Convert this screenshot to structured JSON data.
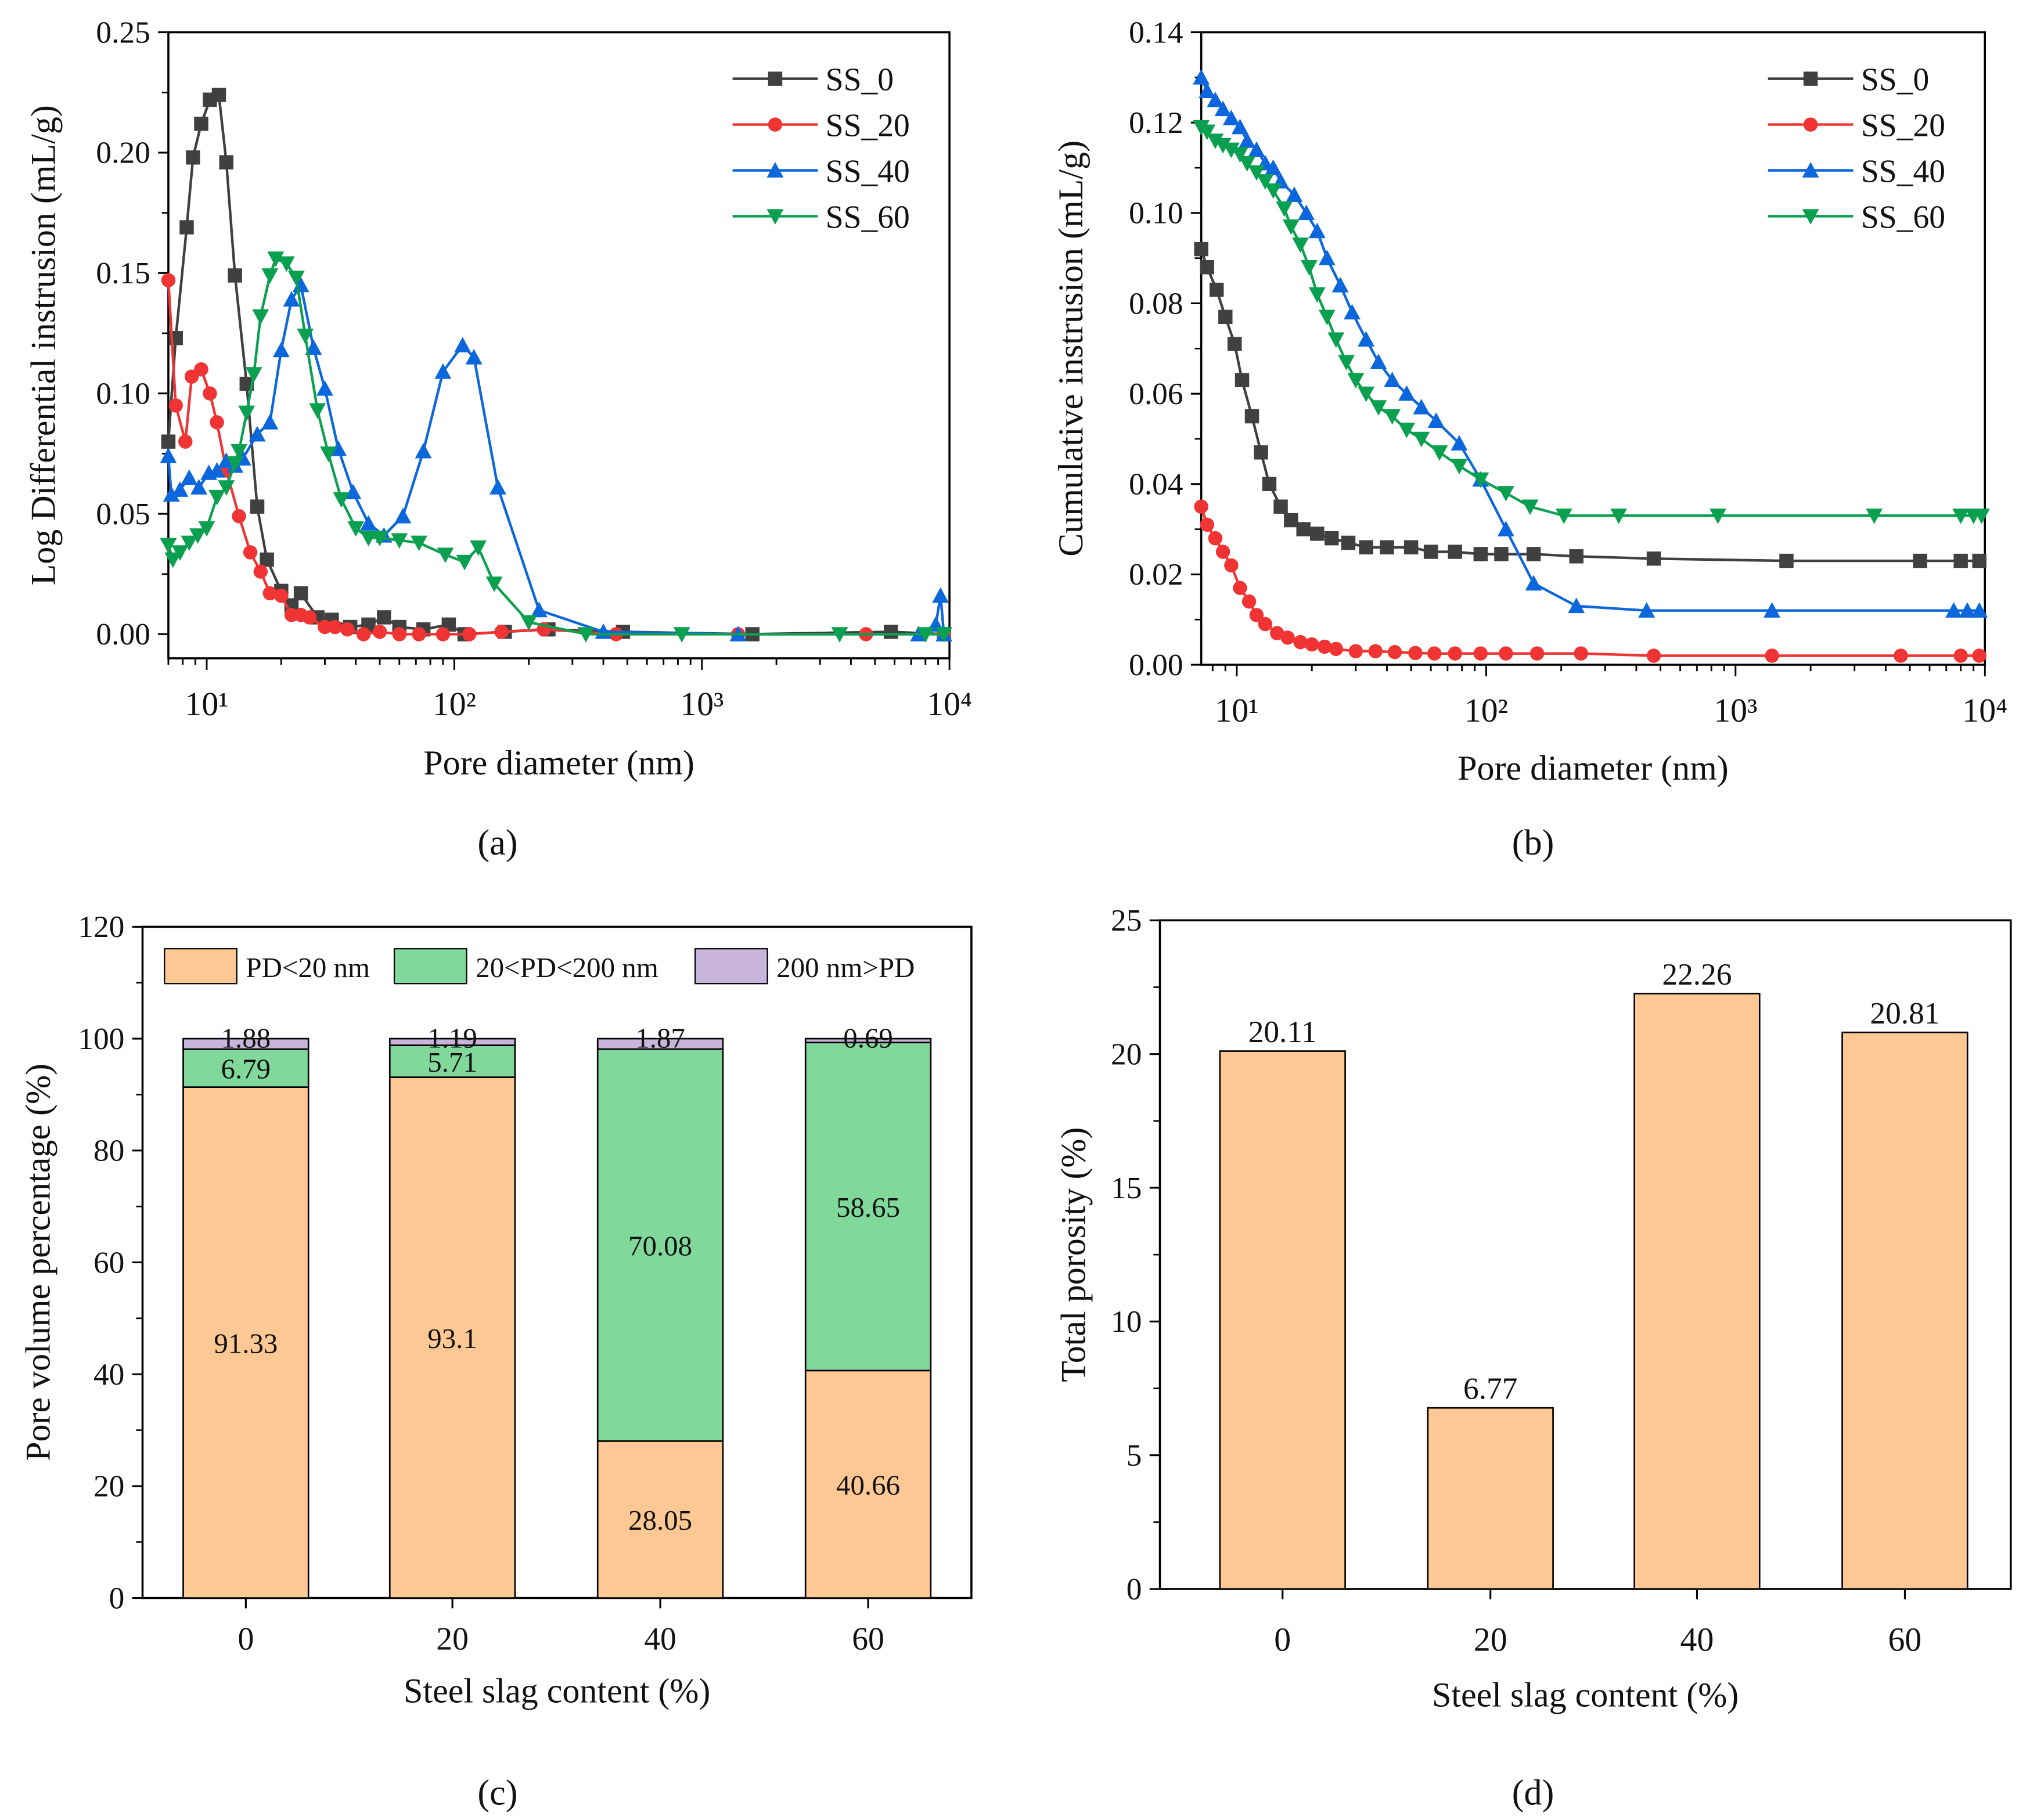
{
  "chart_data": [
    {
      "id": "a",
      "panel_label": "(a)",
      "type": "line",
      "xscale": "log",
      "xlabel": "Pore diameter (nm)",
      "ylabel": "Log Differential instrusion (mL/g)",
      "xlim": [
        7,
        10000
      ],
      "ylim": [
        -0.01,
        0.25
      ],
      "x_ticks": [
        10,
        100,
        1000,
        10000
      ],
      "x_tick_labels": [
        "10¹",
        "10²",
        "10³",
        "10⁴"
      ],
      "y_ticks": [
        0,
        0.05,
        0.1,
        0.15,
        0.2,
        0.25
      ],
      "y_tick_labels": [
        "0.00",
        "0.05",
        "0.10",
        "0.15",
        "0.20",
        "0.25"
      ],
      "legend_position": "top-right",
      "series": [
        {
          "name": "SS_0",
          "color": "#404040",
          "marker": "square",
          "x": [
            7,
            7.5,
            8.3,
            8.8,
            9.5,
            10.3,
            11.2,
            12,
            13,
            14.5,
            16,
            17.5,
            20,
            22,
            24,
            28,
            32,
            38,
            45,
            52,
            60,
            75,
            95,
            110,
            160,
            240,
            480,
            1600,
            5800,
            9500
          ],
          "y": [
            0.08,
            0.123,
            0.169,
            0.198,
            0.212,
            0.222,
            0.224,
            0.196,
            0.149,
            0.104,
            0.053,
            0.031,
            0.018,
            0.012,
            0.017,
            0.007,
            0.006,
            0.003,
            0.004,
            0.007,
            0.003,
            0.002,
            0.004,
            0.0,
            0.001,
            0.002,
            0.001,
            0,
            0.001,
            0
          ]
        },
        {
          "name": "SS_20",
          "color": "#f03434",
          "marker": "circle",
          "x": [
            7,
            7.5,
            8.2,
            8.7,
            9.5,
            10.3,
            11,
            12,
            13.5,
            15,
            16.5,
            18,
            20,
            22,
            24,
            26,
            30,
            33,
            37,
            43,
            50,
            60,
            72,
            90,
            115,
            155,
            230,
            450,
            1400,
            4600,
            9500
          ],
          "y": [
            0.147,
            0.095,
            0.08,
            0.107,
            0.11,
            0.1,
            0.088,
            0.068,
            0.049,
            0.034,
            0.026,
            0.017,
            0.016,
            0.008,
            0.008,
            0.007,
            0.003,
            0.003,
            0.002,
            0,
            0.001,
            0,
            0,
            0,
            0,
            0.001,
            0.002,
            0,
            0,
            0,
            0
          ]
        },
        {
          "name": "SS_40",
          "color": "#0b67db",
          "marker": "triangle-up",
          "x": [
            7,
            7.2,
            7.8,
            8.5,
            9.3,
            10.2,
            11,
            12,
            13,
            14,
            16,
            18,
            20,
            22,
            24,
            27,
            30,
            34,
            39,
            45,
            52,
            62,
            75,
            90,
            108,
            120,
            150,
            220,
            400,
            1400,
            7500,
            8800,
            9200,
            9500
          ],
          "y": [
            0.074,
            0.058,
            0.06,
            0.065,
            0.061,
            0.067,
            0.068,
            0.072,
            0.07,
            0.073,
            0.083,
            0.088,
            0.118,
            0.139,
            0.145,
            0.119,
            0.102,
            0.077,
            0.059,
            0.046,
            0.041,
            0.049,
            0.076,
            0.109,
            0.12,
            0.115,
            0.061,
            0.01,
            0.001,
            0,
            0,
            0.004,
            0.016,
            0
          ]
        },
        {
          "name": "SS_60",
          "color": "#0ba050",
          "marker": "triangle-down",
          "x": [
            7,
            7.3,
            7.8,
            8.5,
            9.2,
            10,
            11,
            12,
            13,
            13.5,
            14.5,
            15.5,
            16.5,
            18,
            19,
            21,
            23,
            25,
            28,
            31,
            35,
            40,
            45,
            50,
            60,
            72,
            92,
            110,
            125,
            145,
            200,
            340,
            830,
            3600,
            8000,
            9500
          ],
          "y": [
            0.037,
            0.031,
            0.034,
            0.038,
            0.041,
            0.044,
            0.057,
            0.061,
            0.071,
            0.076,
            0.092,
            0.108,
            0.132,
            0.149,
            0.156,
            0.154,
            0.148,
            0.124,
            0.093,
            0.075,
            0.056,
            0.044,
            0.04,
            0.04,
            0.039,
            0.038,
            0.033,
            0.03,
            0.036,
            0.021,
            0.005,
            0,
            0,
            0,
            0,
            0
          ]
        }
      ]
    },
    {
      "id": "b",
      "panel_label": "(b)",
      "type": "line",
      "xscale": "log",
      "xlabel": "Pore diameter (nm)",
      "ylabel": "Cumulative instrusion (mL/g)",
      "xlim": [
        7.2,
        10000
      ],
      "ylim": [
        0,
        0.14
      ],
      "x_ticks": [
        10,
        100,
        1000,
        10000
      ],
      "x_tick_labels": [
        "10¹",
        "10²",
        "10³",
        "10⁴"
      ],
      "y_ticks": [
        0,
        0.02,
        0.04,
        0.06,
        0.08,
        0.1,
        0.12,
        0.14
      ],
      "y_tick_labels": [
        "0.00",
        "0.02",
        "0.04",
        "0.06",
        "0.08",
        "0.10",
        "0.12",
        "0.14"
      ],
      "legend_position": "top-right",
      "series": [
        {
          "name": "SS_0",
          "color": "#404040",
          "marker": "square",
          "x": [
            7.2,
            7.6,
            8.3,
            9,
            9.8,
            10.5,
            11.5,
            12.5,
            13.5,
            15,
            16.5,
            18.5,
            21,
            24,
            28,
            33,
            40,
            50,
            60,
            75,
            95,
            115,
            155,
            230,
            470,
            1600,
            5500,
            8000,
            9500
          ],
          "y": [
            0.092,
            0.088,
            0.083,
            0.077,
            0.071,
            0.063,
            0.055,
            0.047,
            0.04,
            0.035,
            0.032,
            0.03,
            0.029,
            0.028,
            0.027,
            0.026,
            0.026,
            0.026,
            0.025,
            0.025,
            0.0245,
            0.0245,
            0.0245,
            0.024,
            0.0235,
            0.023,
            0.023,
            0.023,
            0.023
          ]
        },
        {
          "name": "SS_20",
          "color": "#f03434",
          "marker": "circle",
          "x": [
            7.2,
            7.6,
            8.2,
            8.8,
            9.5,
            10.3,
            11.2,
            12,
            13,
            14.5,
            16,
            18,
            20,
            22.5,
            25,
            30,
            36,
            43,
            52,
            62,
            75,
            95,
            120,
            160,
            240,
            470,
            1400,
            4600,
            8000,
            9500
          ],
          "y": [
            0.035,
            0.031,
            0.028,
            0.025,
            0.022,
            0.017,
            0.014,
            0.011,
            0.009,
            0.007,
            0.006,
            0.005,
            0.0045,
            0.004,
            0.0035,
            0.003,
            0.003,
            0.0028,
            0.0026,
            0.0025,
            0.0025,
            0.0025,
            0.0025,
            0.0025,
            0.0025,
            0.002,
            0.002,
            0.002,
            0.002,
            0.002
          ]
        },
        {
          "name": "SS_40",
          "color": "#0b67db",
          "marker": "triangle-up",
          "x": [
            7.2,
            7.6,
            8.2,
            8.8,
            9.5,
            10.3,
            11,
            12,
            13,
            14,
            15,
            17,
            19,
            21,
            23,
            26,
            29,
            33,
            37,
            42,
            48,
            55,
            63,
            78,
            95,
            120,
            155,
            230,
            440,
            1400,
            7500,
            8500,
            9500
          ],
          "y": [
            0.13,
            0.127,
            0.125,
            0.123,
            0.121,
            0.119,
            0.116,
            0.114,
            0.111,
            0.11,
            0.107,
            0.104,
            0.1,
            0.096,
            0.09,
            0.084,
            0.078,
            0.072,
            0.067,
            0.063,
            0.06,
            0.057,
            0.054,
            0.049,
            0.041,
            0.03,
            0.018,
            0.013,
            0.012,
            0.012,
            0.012,
            0.012,
            0.012
          ]
        },
        {
          "name": "SS_60",
          "color": "#0ba050",
          "marker": "triangle-down",
          "x": [
            7.2,
            7.6,
            8.2,
            8.8,
            9.5,
            10.3,
            11,
            12,
            13,
            14,
            15.5,
            16.5,
            18,
            19.5,
            21,
            23,
            25,
            27.5,
            30,
            33,
            37,
            42,
            48,
            55,
            65,
            78,
            95,
            120,
            150,
            205,
            340,
            850,
            3600,
            8000,
            9000,
            9700
          ],
          "y": [
            0.119,
            0.118,
            0.116,
            0.115,
            0.114,
            0.113,
            0.111,
            0.109,
            0.107,
            0.105,
            0.101,
            0.097,
            0.093,
            0.088,
            0.082,
            0.077,
            0.072,
            0.067,
            0.063,
            0.06,
            0.057,
            0.055,
            0.052,
            0.05,
            0.047,
            0.044,
            0.041,
            0.038,
            0.035,
            0.033,
            0.033,
            0.033,
            0.033,
            0.033,
            0.033,
            0.033
          ]
        }
      ]
    },
    {
      "id": "c",
      "panel_label": "(c)",
      "type": "bar",
      "stacked": true,
      "xlabel": "Steel slag content (%)",
      "ylabel": "Pore volume percentage (%)",
      "ylim": [
        0,
        120
      ],
      "y_ticks": [
        0,
        20,
        40,
        60,
        80,
        100,
        120
      ],
      "y_tick_labels": [
        "0",
        "20",
        "40",
        "60",
        "80",
        "100",
        "120"
      ],
      "categories": [
        "0",
        "20",
        "40",
        "60"
      ],
      "legend_position": "top",
      "series": [
        {
          "name": "PD<20 nm",
          "color": "#fdc894",
          "values": [
            91.33,
            93.1,
            28.05,
            40.66
          ],
          "labels": [
            "91.33",
            "93.1",
            "28.05",
            "40.66"
          ]
        },
        {
          "name": "20<PD<200 nm",
          "color": "#80d99b",
          "values": [
            6.79,
            5.71,
            70.08,
            58.65
          ],
          "labels": [
            "6.79",
            "5.71",
            "70.08",
            "58.65"
          ]
        },
        {
          "name": "200 nm>PD",
          "color": "#c9b4dc",
          "values": [
            1.88,
            1.19,
            1.87,
            0.69
          ],
          "labels": [
            "1.88",
            "1.19",
            "1.87",
            "0.69"
          ]
        }
      ]
    },
    {
      "id": "d",
      "panel_label": "(d)",
      "type": "bar",
      "xlabel": "Steel slag content (%)",
      "ylabel": "Total porosity (%)",
      "ylim": [
        0,
        25
      ],
      "y_ticks": [
        0,
        5,
        10,
        15,
        20,
        25
      ],
      "y_tick_labels": [
        "0",
        "5",
        "10",
        "15",
        "20",
        "25"
      ],
      "categories": [
        "0",
        "20",
        "40",
        "60"
      ],
      "color": "#fdc894",
      "values": [
        20.11,
        6.77,
        22.26,
        20.81
      ],
      "labels": [
        "20.11",
        "6.77",
        "22.26",
        "20.81"
      ]
    }
  ]
}
